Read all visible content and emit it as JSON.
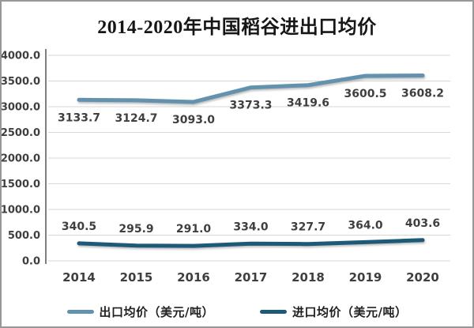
{
  "header": {
    "title": "2014-2020年中国稻谷进出口均价"
  },
  "chart_data": {
    "type": "line",
    "title": "2014-2020年中国稻谷进出口均价",
    "categories": [
      "2014",
      "2015",
      "2016",
      "2017",
      "2018",
      "2019",
      "2020"
    ],
    "series": [
      {
        "name": "出口均价（美元/吨）",
        "color": "#6392AF",
        "values": [
          3133.7,
          3124.7,
          3093.0,
          3373.3,
          3419.6,
          3600.5,
          3608.2
        ],
        "labels": [
          "3133.7",
          "3124.7",
          "3093.0",
          "3373.3",
          "3419.6",
          "3600.5",
          "3608.2"
        ],
        "label_position": "below"
      },
      {
        "name": "进口均价（美元/吨）",
        "color": "#1D5A77",
        "values": [
          340.5,
          295.9,
          291.0,
          334.0,
          327.7,
          364.0,
          403.6
        ],
        "labels": [
          "340.5",
          "295.9",
          "291.0",
          "334.0",
          "327.7",
          "364.0",
          "403.6"
        ],
        "label_position": "above"
      }
    ],
    "ylim": [
      0,
      4000
    ],
    "ytick_values": [
      4000,
      3500,
      3000,
      2500,
      2000,
      1500,
      1000,
      500,
      0
    ],
    "ytick_labels": [
      "4000.0",
      "3500.0",
      "3000.0",
      "2500.0",
      "2000.0",
      "1500.0",
      "1000.0",
      "500.0",
      "0.0"
    ],
    "grid": true,
    "legend_position": "bottom"
  },
  "legend": {
    "items": [
      {
        "label": "出口均价（美元/吨）",
        "color": "#6392AF"
      },
      {
        "label": "进口均价（美元/吨）",
        "color": "#1D5A77"
      }
    ]
  }
}
